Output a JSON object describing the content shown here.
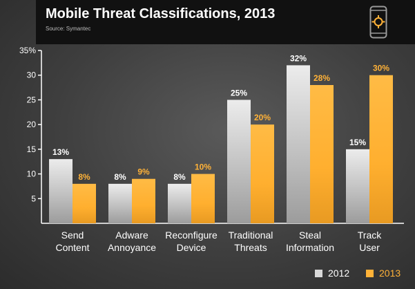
{
  "header": {
    "title": "Mobile Threat Classifications, 2013",
    "source": "Source: Symantec",
    "icon": "mobile-target-icon"
  },
  "legend": {
    "items": [
      {
        "label": "2012",
        "color": "#d9d9d9"
      },
      {
        "label": "2013",
        "color": "#ffb238"
      }
    ]
  },
  "colors": {
    "accent": "#ffb238",
    "bar_2012": "#d9d9d9",
    "bar_2013": "#ffb238",
    "label_2012": "#ffffff",
    "label_2013": "#ffb238",
    "axis": "#ffffff"
  },
  "chart_data": {
    "type": "bar",
    "categories": [
      [
        "Send",
        "Content"
      ],
      [
        "Adware",
        "Annoyance"
      ],
      [
        "Reconfigure",
        "Device"
      ],
      [
        "Traditional",
        "Threats"
      ],
      [
        "Steal",
        "Information"
      ],
      [
        "Track",
        "User"
      ]
    ],
    "series": [
      {
        "name": "2012",
        "values": [
          13,
          8,
          8,
          25,
          32,
          15
        ],
        "labels": [
          "13%",
          "8%",
          "8%",
          "25%",
          "32%",
          "15%"
        ]
      },
      {
        "name": "2013",
        "values": [
          8,
          9,
          10,
          20,
          28,
          30
        ],
        "labels": [
          "8%",
          "9%",
          "10%",
          "20%",
          "28%",
          "30%"
        ]
      }
    ],
    "yticks": [
      {
        "value": 5,
        "label": "5"
      },
      {
        "value": 10,
        "label": "10"
      },
      {
        "value": 15,
        "label": "15"
      },
      {
        "value": 20,
        "label": "20"
      },
      {
        "value": 25,
        "label": "25"
      },
      {
        "value": 30,
        "label": "30"
      },
      {
        "value": 35,
        "label": "35%"
      }
    ],
    "ylim": [
      0,
      35
    ],
    "grid": false,
    "legend_position": "bottom-right"
  }
}
